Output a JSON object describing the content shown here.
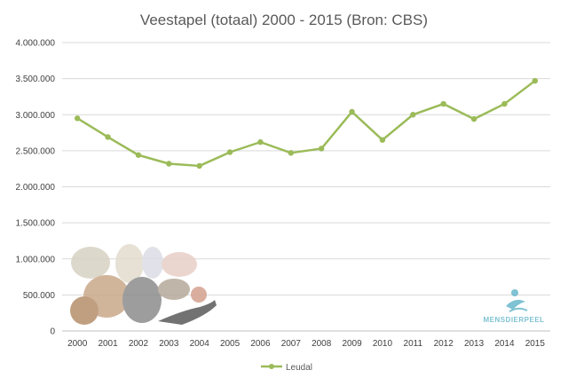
{
  "chart_data": {
    "type": "line",
    "title": "Veestapel (totaal) 2000 - 2015 (Bron: CBS)",
    "xlabel": "",
    "ylabel": "",
    "categories": [
      "2000",
      "2001",
      "2002",
      "2003",
      "2004",
      "2005",
      "2006",
      "2007",
      "2008",
      "2009",
      "2010",
      "2011",
      "2012",
      "2013",
      "2014",
      "2015"
    ],
    "series": [
      {
        "name": "Leudal",
        "color": "#9bbb59",
        "values": [
          2950000,
          2690000,
          2440000,
          2320000,
          2290000,
          2480000,
          2620000,
          2470000,
          2530000,
          3040000,
          2650000,
          3000000,
          3150000,
          2940000,
          3150000,
          3470000
        ]
      }
    ],
    "ylim": [
      0,
      4000000
    ],
    "yticks": [
      0,
      500000,
      1000000,
      1500000,
      2000000,
      2500000,
      3000000,
      3500000,
      4000000
    ],
    "ytick_labels": [
      "0",
      "500.000",
      "1.000.000",
      "1.500.000",
      "2.000.000",
      "2.500.000",
      "3.000.000",
      "3.500.000",
      "4.000.000"
    ],
    "grid": true,
    "legend_position": "bottom"
  },
  "watermark": {
    "logo_text": "MENSDIERPEEL",
    "logo_color": "#5fb3c9"
  }
}
